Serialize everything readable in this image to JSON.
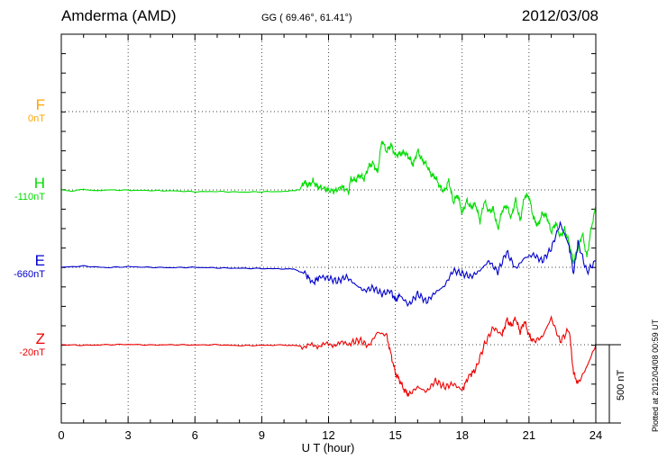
{
  "header": {
    "station": "Amderma (AMD)",
    "coords": "GG ( 69.46°,  61.41°)",
    "date": "2012/03/08"
  },
  "components": [
    {
      "name": "F",
      "baseline": "0nT",
      "color": "#ffa500"
    },
    {
      "name": "H",
      "baseline": "-110nT",
      "color": "#00dd00"
    },
    {
      "name": "E",
      "baseline": "-660nT",
      "color": "#0000cc"
    },
    {
      "name": "Z",
      "baseline": "-20nT",
      "color": "#ee0000"
    }
  ],
  "scale_label": "500 nT",
  "plotted_note": "Plotted at 2012/04/08 00:59 UT",
  "chart_data": {
    "type": "line",
    "xlabel": "U T (hour)",
    "xlim": [
      0,
      24
    ],
    "xticks": [
      "0",
      "3",
      "6",
      "9",
      "12",
      "15",
      "18",
      "21",
      "24"
    ],
    "grid": true,
    "yunit": "nT",
    "scale_bar_nT": 500,
    "series": [
      {
        "name": "F",
        "baseline": "0nT",
        "color": "#ffa500",
        "x": [],
        "y": []
      },
      {
        "name": "H",
        "baseline": "-110nT",
        "color": "#00dd00",
        "x": [
          0,
          0.5,
          1,
          1.5,
          2,
          3,
          4,
          5,
          6,
          7,
          8,
          9,
          10,
          10.7,
          10.9,
          11.1,
          11.3,
          11.5,
          11.8,
          12.0,
          12.3,
          12.6,
          12.9,
          13.0,
          13.2,
          13.4,
          13.6,
          13.8,
          14.0,
          14.2,
          14.4,
          14.6,
          14.8,
          15.0,
          15.2,
          15.4,
          15.6,
          15.8,
          16.0,
          16.2,
          16.4,
          16.6,
          16.8,
          17.0,
          17.2,
          17.4,
          17.6,
          17.8,
          18.0,
          18.2,
          18.4,
          18.6,
          18.8,
          19.0,
          19.2,
          19.4,
          19.6,
          19.8,
          20.0,
          20.2,
          20.4,
          20.6,
          20.8,
          21.0,
          21.2,
          21.4,
          21.6,
          21.8,
          22.0,
          22.2,
          22.4,
          22.6,
          22.8,
          23.0,
          23.2,
          23.4,
          23.6,
          23.8,
          24.0
        ],
        "y": [
          0,
          -8,
          5,
          -6,
          0,
          -2,
          -4,
          -6,
          -12,
          -10,
          -14,
          -12,
          -10,
          0,
          50,
          28,
          56,
          20,
          10,
          -4,
          -6,
          20,
          -10,
          70,
          60,
          95,
          70,
          150,
          170,
          110,
          320,
          245,
          290,
          220,
          230,
          240,
          210,
          160,
          250,
          190,
          160,
          100,
          80,
          20,
          -10,
          60,
          -80,
          -30,
          -150,
          -70,
          -110,
          -90,
          -200,
          -70,
          -140,
          -120,
          -250,
          -130,
          -100,
          -180,
          -60,
          -200,
          -40,
          -40,
          -180,
          -230,
          -150,
          -170,
          -270,
          -210,
          -300,
          -250,
          -340,
          -460,
          -370,
          -280,
          -430,
          -240,
          -110
        ]
      },
      {
        "name": "E",
        "baseline": "-660nT",
        "color": "#0000cc",
        "x": [
          0,
          1,
          2,
          3,
          4,
          5,
          6,
          7,
          8,
          9,
          10,
          10.5,
          11.0,
          11.3,
          11.6,
          12.0,
          12.4,
          12.8,
          13.2,
          13.6,
          14.0,
          14.4,
          14.8,
          15.0,
          15.2,
          15.6,
          16.0,
          16.4,
          16.8,
          17.2,
          17.6,
          18.0,
          18.4,
          18.8,
          19.2,
          19.6,
          20.0,
          20.4,
          20.8,
          21.2,
          21.6,
          22.0,
          22.4,
          22.8,
          23.0,
          23.2,
          23.6,
          24.0
        ],
        "y": [
          0,
          8,
          -2,
          4,
          0,
          -2,
          0,
          -4,
          -6,
          -8,
          -10,
          -12,
          -50,
          -100,
          -60,
          -70,
          -90,
          -60,
          -110,
          -150,
          -130,
          -170,
          -150,
          -210,
          -180,
          -240,
          -170,
          -220,
          -160,
          -120,
          -20,
          -40,
          -60,
          -20,
          40,
          -30,
          100,
          -10,
          60,
          80,
          40,
          120,
          280,
          140,
          -40,
          160,
          -30,
          40
        ]
      },
      {
        "name": "Z",
        "baseline": "-20nT",
        "color": "#ee0000",
        "x": [
          0,
          1,
          2,
          3,
          4,
          5,
          6,
          7,
          8,
          9,
          10,
          10.5,
          11.0,
          11.5,
          12.0,
          12.5,
          13.0,
          13.4,
          13.8,
          14.2,
          14.6,
          14.8,
          15.0,
          15.2,
          15.4,
          15.6,
          16.0,
          16.4,
          16.8,
          17.2,
          17.6,
          18.0,
          18.3,
          18.6,
          19.0,
          19.4,
          19.8,
          20.0,
          20.2,
          20.4,
          20.6,
          20.8,
          21.0,
          21.2,
          21.6,
          22.0,
          22.4,
          22.8,
          23.0,
          23.2,
          23.6,
          24.0
        ],
        "y": [
          0,
          -4,
          0,
          2,
          -2,
          0,
          -2,
          0,
          -6,
          -4,
          -2,
          -6,
          -10,
          -4,
          0,
          6,
          12,
          30,
          -10,
          80,
          60,
          -60,
          -180,
          -230,
          -290,
          -320,
          -270,
          -300,
          -230,
          -270,
          -250,
          -290,
          -200,
          -160,
          0,
          110,
          60,
          160,
          120,
          170,
          80,
          150,
          60,
          20,
          50,
          170,
          20,
          100,
          -180,
          -250,
          -140,
          0
        ]
      }
    ]
  }
}
